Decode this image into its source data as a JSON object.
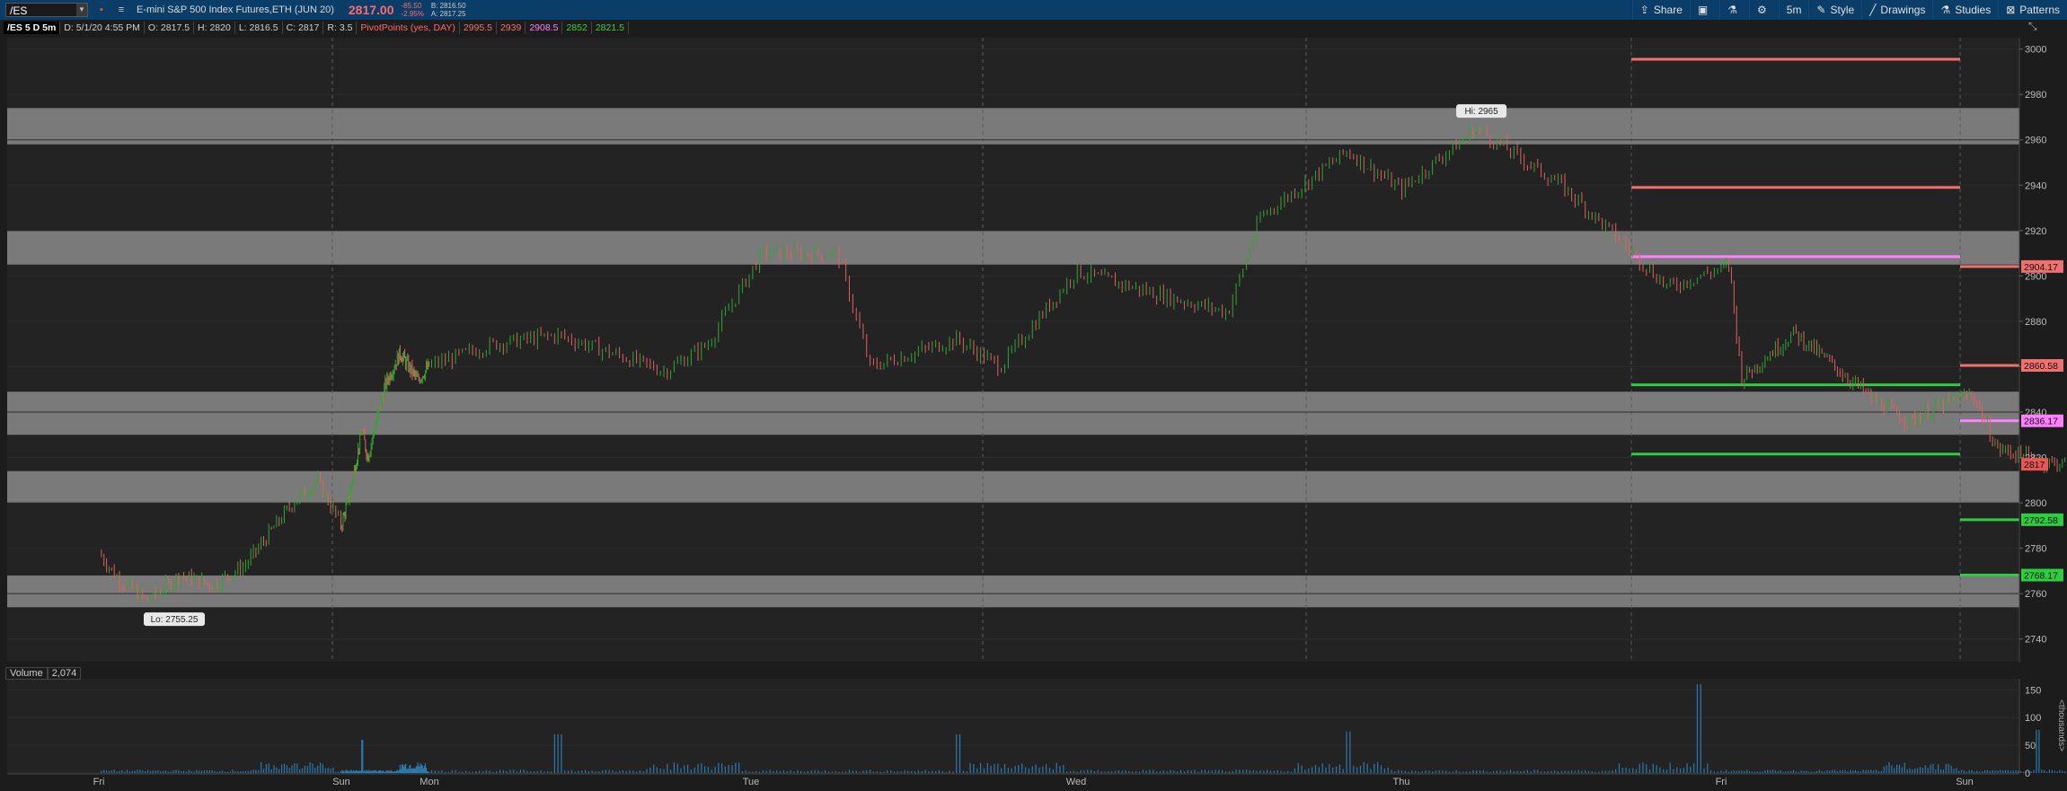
{
  "toolbar": {
    "symbol": "/ES",
    "instrument": "E-mini S&P 500 Index Futures,ETH (JUN 20)",
    "last_price": "2817.00",
    "change": "-85.50",
    "change_pct": "-2.95%",
    "bid": "B: 2816.50",
    "ask": "A: 2817.25",
    "items": [
      {
        "name": "share",
        "label": "Share",
        "icon": "share-icon"
      },
      {
        "name": "flask",
        "label": "",
        "icon": "flask-icon"
      },
      {
        "name": "settings",
        "label": "",
        "icon": "gear-icon"
      },
      {
        "name": "timeframe",
        "label": "5m",
        "icon": ""
      },
      {
        "name": "style",
        "label": "Style",
        "icon": "style-icon"
      },
      {
        "name": "drawings",
        "label": "Drawings",
        "icon": "pencil-icon"
      },
      {
        "name": "studies",
        "label": "Studies",
        "icon": "flask-icon"
      },
      {
        "name": "patterns",
        "label": "Patterns",
        "icon": "patterns-icon"
      }
    ]
  },
  "infobar": {
    "symbol": "/ES 5 D 5m",
    "date": "D: 5/1/20 4:55 PM",
    "open": "O: 2817.5",
    "high": "H: 2820",
    "low": "L: 2816.5",
    "close": "C: 2817",
    "range": "R: 3.5",
    "study": "PivotPoints (yes, DAY)",
    "pivots": [
      {
        "value": "2995.5",
        "color": "#f07070"
      },
      {
        "value": "2939",
        "color": "#f07070"
      },
      {
        "value": "2908.5",
        "color": "#ff80ff"
      },
      {
        "value": "2852",
        "color": "#3ccf3c"
      },
      {
        "value": "2821.5",
        "color": "#3ccf3c"
      }
    ]
  },
  "colors": {
    "up": "#2fa82f",
    "down": "#e06060",
    "r": "#f07070",
    "p": "#ff80ff",
    "s": "#2ecc40",
    "vol": "#2a7ab0"
  },
  "chart_data": {
    "type": "candlestick",
    "ylim": [
      2730,
      3005
    ],
    "yticks": [
      2740,
      2760,
      2780,
      2800,
      2820,
      2840,
      2860,
      2880,
      2900,
      2920,
      2940,
      2960,
      2980,
      3000
    ],
    "days": [
      "Fri",
      "Sun",
      "Mon",
      "Tue",
      "Wed",
      "Thu",
      "Fri",
      "Sun"
    ],
    "zones": [
      [
        2958,
        2974
      ],
      [
        2905,
        2920
      ],
      [
        2830,
        2849
      ],
      [
        2800,
        2814
      ],
      [
        2754,
        2768
      ]
    ],
    "price_path": [
      [
        0,
        2778
      ],
      [
        0.25,
        2766
      ],
      [
        0.6,
        2757
      ],
      [
        1.0,
        2768
      ],
      [
        1.4,
        2764
      ],
      [
        1.8,
        2772
      ],
      [
        2.4,
        2800
      ],
      [
        2.7,
        2810
      ],
      [
        3.0,
        2790
      ],
      [
        3.3,
        2805
      ],
      [
        3.7,
        2832
      ],
      [
        3.9,
        2820
      ],
      [
        4.5,
        2852
      ],
      [
        5.0,
        2866
      ],
      [
        5.6,
        2854
      ],
      [
        6.6,
        2870
      ],
      [
        7.2,
        2874
      ],
      [
        8.2,
        2858
      ],
      [
        8.6,
        2870
      ],
      [
        9.1,
        2910
      ],
      [
        9.8,
        2910
      ],
      [
        10.1,
        2860
      ],
      [
        10.9,
        2872
      ],
      [
        11.3,
        2860
      ],
      [
        12.0,
        2902
      ],
      [
        12.9,
        2890
      ],
      [
        13.4,
        2884
      ],
      [
        13.7,
        2926
      ],
      [
        14.5,
        2955
      ],
      [
        15.0,
        2938
      ],
      [
        15.7,
        2965
      ],
      [
        16.5,
        2940
      ],
      [
        17.0,
        2918
      ],
      [
        17.5,
        2895
      ],
      [
        18.1,
        2905
      ],
      [
        18.25,
        2855
      ],
      [
        18.9,
        2875
      ],
      [
        19.4,
        2860
      ],
      [
        19.9,
        2845
      ],
      [
        20.3,
        2836
      ],
      [
        20.9,
        2846
      ],
      [
        21.1,
        2848
      ],
      [
        21.4,
        2824
      ],
      [
        22.0,
        2818
      ],
      [
        22.3,
        2817
      ]
    ],
    "hi_label": "Hi: 2965",
    "lo_label": "Lo: 2755.25",
    "pivot_lines": [
      {
        "value": 2995.5,
        "color": "r"
      },
      {
        "value": 2939,
        "color": "r"
      },
      {
        "value": 2908.5,
        "color": "p"
      },
      {
        "value": 2852,
        "color": "s"
      },
      {
        "value": 2821.5,
        "color": "s"
      }
    ],
    "next_levels": [
      {
        "label": "2904.17",
        "value": 2904.17,
        "color": "r"
      },
      {
        "label": "2860.58",
        "value": 2860.58,
        "color": "r"
      },
      {
        "label": "2836.17",
        "value": 2836.17,
        "color": "p"
      },
      {
        "label": "2792.58",
        "value": 2792.58,
        "color": "s"
      },
      {
        "label": "2768.17",
        "value": 2768.17,
        "color": "s"
      }
    ],
    "current_label": "2817",
    "current_value": 2817,
    "volume": {
      "title": "Volume",
      "last": "2,074",
      "yticks": [
        0,
        50,
        100,
        150
      ],
      "axis_label": "<thousands>",
      "spikes": [
        [
          3.7,
          60
        ],
        [
          7.2,
          70
        ],
        [
          10.9,
          70
        ],
        [
          14.5,
          75
        ],
        [
          17.8,
          160
        ],
        [
          21.9,
          78
        ]
      ]
    }
  }
}
